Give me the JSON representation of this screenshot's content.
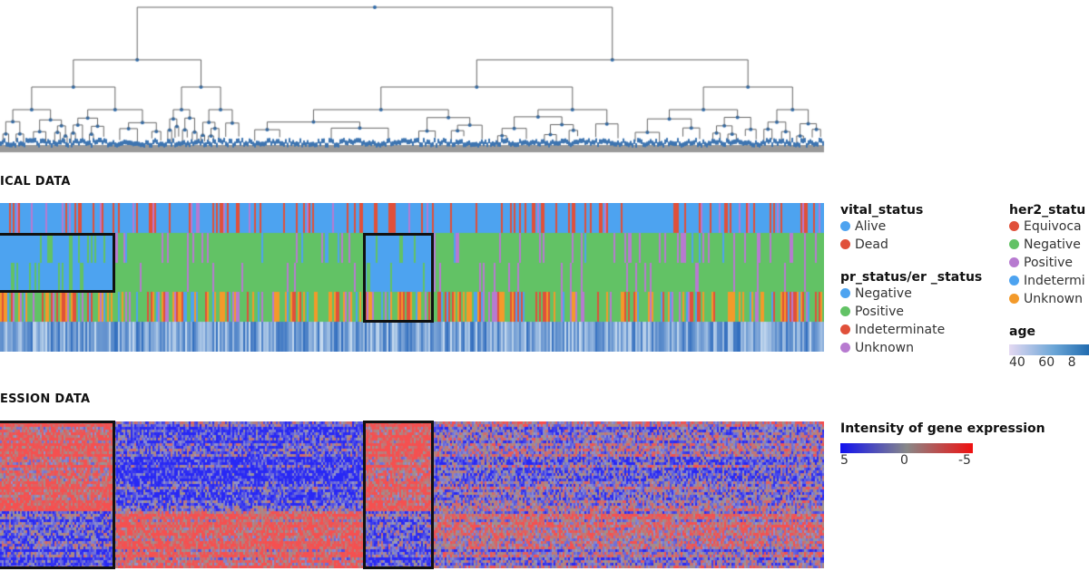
{
  "chart_data": {
    "type": "heatmap",
    "sections": {
      "clinical": "ICAL DATA",
      "expression": "ESSION DATA"
    },
    "clinical_tracks": [
      "vital_status",
      "pr_status",
      "er_status",
      "her2_status",
      "age"
    ],
    "legends": {
      "vital_status": {
        "title": "vital_status",
        "items": [
          {
            "label": "Alive",
            "color": "#4da3f0"
          },
          {
            "label": "Dead",
            "color": "#e0503a"
          }
        ]
      },
      "pr_er_status": {
        "title": "pr_status/er _status",
        "items": [
          {
            "label": "Negative",
            "color": "#4da3f0"
          },
          {
            "label": "Positive",
            "color": "#62c265"
          },
          {
            "label": "Indeterminate",
            "color": "#e0503a"
          },
          {
            "label": "Unknown",
            "color": "#b77ad0"
          }
        ]
      },
      "her2_status": {
        "title": "her2_statu",
        "items": [
          {
            "label": "Equivoca",
            "color": "#e0503a"
          },
          {
            "label": "Negative",
            "color": "#62c265"
          },
          {
            "label": "Positive",
            "color": "#b77ad0"
          },
          {
            "label": "Indetermi",
            "color": "#4da3f0"
          },
          {
            "label": "Unknown",
            "color": "#f39a2a"
          }
        ]
      },
      "age": {
        "title": "age",
        "ticks": [
          "40",
          "60",
          "8"
        ],
        "colors": [
          "#e4d9f2",
          "#0b5aa4"
        ]
      },
      "expression": {
        "title": "Intensity of gene expression",
        "ticks": [
          "5",
          "0",
          "-5"
        ],
        "colors": [
          "#1010f0",
          "#888888",
          "#f01010"
        ]
      }
    },
    "highlighted_clusters": 2
  }
}
